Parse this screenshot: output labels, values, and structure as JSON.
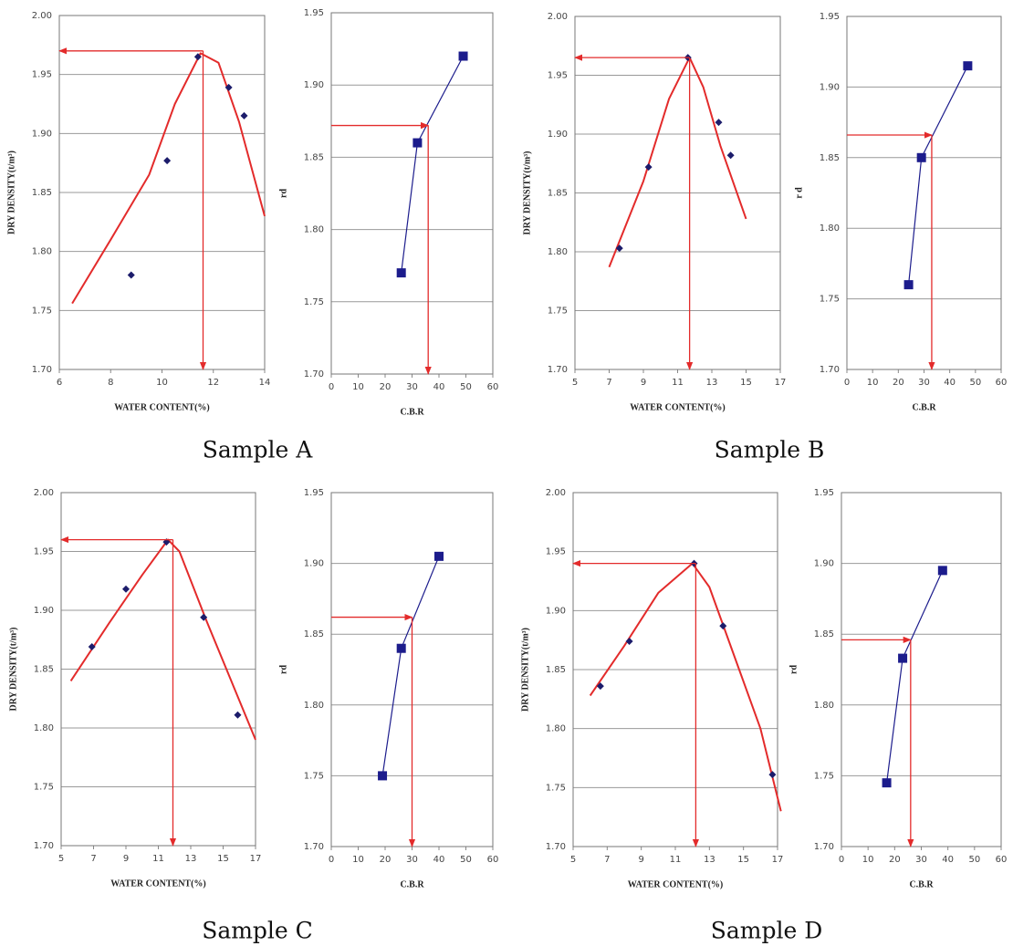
{
  "chart_data": [
    {
      "type": "line",
      "x_label": "WATER CONTENT(%)",
      "y_label": "DRY DENSITY(t/m³)",
      "xlim": [
        6,
        14
      ],
      "xticks": [
        6,
        8,
        10,
        12,
        14
      ],
      "ylim": [
        1.7,
        2.0
      ],
      "yticks": [
        {
          "value": 1.7,
          "label": "1.70"
        },
        1.75,
        {
          "value": 1.8,
          "label": "1.80"
        },
        1.85,
        {
          "value": 1.9,
          "label": "1.90"
        },
        1.95,
        {
          "value": 2.0,
          "label": "2.00"
        }
      ],
      "grid": true,
      "series": [
        {
          "color": "#e32b2b",
          "marker": "none",
          "x": [
            6.5,
            8,
            9.5,
            10.5,
            11.5,
            12.2,
            13,
            14
          ],
          "values": [
            1.756,
            1.81,
            1.865,
            1.925,
            1.968,
            1.96,
            1.91,
            1.83
          ]
        },
        {
          "color": "#1c1c6b",
          "marker": "diamond",
          "x": [
            8.8,
            10.2,
            11.4,
            12.6,
            13.2
          ],
          "values": [
            1.78,
            1.877,
            1.965,
            1.939,
            1.915
          ]
        }
      ],
      "guide": {
        "x": 11.6,
        "y": 1.97,
        "arrows": "to-axes",
        "color": "#e32b2b"
      }
    },
    {
      "type": "line",
      "x_label": "C.B.R",
      "y_label": "rd",
      "xlim": [
        0,
        60
      ],
      "xticks": [
        0,
        10,
        20,
        30,
        40,
        50,
        60
      ],
      "ylim": [
        1.7,
        1.95
      ],
      "yticks": [
        {
          "value": 1.7,
          "label": "1.70"
        },
        1.75,
        {
          "value": 1.8,
          "label": "1.80"
        },
        1.85,
        {
          "value": 1.9,
          "label": "1.90"
        },
        1.95
      ],
      "grid": true,
      "series": [
        {
          "color": "#1c1c8c",
          "marker": "square",
          "line": true,
          "x": [
            26,
            32,
            49
          ],
          "values": [
            1.77,
            1.86,
            1.92
          ]
        }
      ],
      "guide": {
        "x": 36,
        "y": 1.872,
        "arrows": "from-y-axis",
        "color": "#e32b2b"
      }
    },
    {
      "type": "line",
      "x_label": "WATER CONTENT(%)",
      "y_label": "DRY DENSITY(t/m³)",
      "xlim": [
        5,
        17
      ],
      "xticks": [
        5,
        7,
        9,
        11,
        13,
        15,
        17
      ],
      "ylim": [
        1.7,
        2.0
      ],
      "yticks": [
        {
          "value": 1.7,
          "label": "1.70"
        },
        1.75,
        {
          "value": 1.8,
          "label": "1.80"
        },
        1.85,
        {
          "value": 1.9,
          "label": "1.90"
        },
        1.95,
        {
          "value": 2.0,
          "label": "2.00"
        }
      ],
      "grid": true,
      "series": [
        {
          "color": "#e32b2b",
          "marker": "none",
          "x": [
            7,
            9,
            10.5,
            11.7,
            12.5,
            13.5,
            15
          ],
          "values": [
            1.787,
            1.86,
            1.93,
            1.965,
            1.94,
            1.89,
            1.828
          ]
        },
        {
          "color": "#1c1c6b",
          "marker": "diamond",
          "x": [
            7.6,
            9.3,
            11.6,
            13.4,
            14.1
          ],
          "values": [
            1.803,
            1.872,
            1.965,
            1.91,
            1.882
          ]
        }
      ],
      "guide": {
        "x": 11.7,
        "y": 1.965,
        "arrows": "to-axes",
        "color": "#e32b2b"
      }
    },
    {
      "type": "line",
      "x_label": "C.B.R",
      "y_label": "r d",
      "xlim": [
        0,
        60
      ],
      "xticks": [
        0,
        10,
        20,
        30,
        40,
        50,
        60
      ],
      "ylim": [
        1.7,
        1.95
      ],
      "yticks": [
        {
          "value": 1.7,
          "label": "1.70"
        },
        1.75,
        {
          "value": 1.8,
          "label": "1.80"
        },
        1.85,
        {
          "value": 1.9,
          "label": "1.90"
        },
        1.95
      ],
      "grid": true,
      "series": [
        {
          "color": "#1c1c8c",
          "marker": "square",
          "line": true,
          "x": [
            24,
            29,
            47
          ],
          "values": [
            1.76,
            1.85,
            1.915
          ]
        }
      ],
      "guide": {
        "x": 33,
        "y": 1.866,
        "arrows": "from-y-axis",
        "color": "#e32b2b"
      }
    },
    {
      "type": "line",
      "x_label": "WATER CONTENT(%)",
      "y_label": "DRY DENSITY(t/m³)",
      "xlim": [
        5,
        17
      ],
      "xticks": [
        5,
        7,
        9,
        11,
        13,
        15,
        17
      ],
      "ylim": [
        1.7,
        2.0
      ],
      "yticks": [
        {
          "value": 1.7,
          "label": "1.70"
        },
        1.75,
        {
          "value": 1.8,
          "label": "1.80"
        },
        1.85,
        {
          "value": 1.9,
          "label": "1.90"
        },
        1.95,
        {
          "value": 2.0,
          "label": "2.00"
        }
      ],
      "grid": true,
      "series": [
        {
          "color": "#e32b2b",
          "marker": "none",
          "x": [
            5.6,
            8,
            10,
            11.6,
            12.3,
            14,
            17
          ],
          "values": [
            1.84,
            1.89,
            1.93,
            1.96,
            1.95,
            1.89,
            1.79
          ]
        },
        {
          "color": "#1c1c6b",
          "marker": "diamond",
          "x": [
            6.9,
            9,
            11.5,
            13.8,
            15.9
          ],
          "values": [
            1.869,
            1.918,
            1.958,
            1.894,
            1.811
          ]
        }
      ],
      "guide": {
        "x": 11.9,
        "y": 1.96,
        "arrows": "to-axes",
        "color": "#e32b2b"
      }
    },
    {
      "type": "line",
      "x_label": "C.B.R",
      "y_label": "rd",
      "xlim": [
        0,
        60
      ],
      "xticks": [
        0,
        10,
        20,
        30,
        40,
        50,
        60
      ],
      "ylim": [
        1.7,
        1.95
      ],
      "yticks": [
        {
          "value": 1.7,
          "label": "1.70"
        },
        1.75,
        {
          "value": 1.8,
          "label": "1.80"
        },
        1.85,
        {
          "value": 1.9,
          "label": "1.90"
        },
        1.95
      ],
      "grid": true,
      "series": [
        {
          "color": "#1c1c8c",
          "marker": "square",
          "line": true,
          "x": [
            19,
            26,
            40
          ],
          "values": [
            1.75,
            1.84,
            1.905
          ]
        }
      ],
      "guide": {
        "x": 30,
        "y": 1.862,
        "arrows": "from-y-axis",
        "color": "#e32b2b"
      }
    },
    {
      "type": "line",
      "x_label": "WATER CONTENT(%)",
      "y_label": "DRY DENSITY(t/m³)",
      "xlim": [
        5,
        17
      ],
      "xticks": [
        5,
        7,
        9,
        11,
        13,
        15,
        17
      ],
      "ylim": [
        1.7,
        2.0
      ],
      "yticks": [
        {
          "value": 1.7,
          "label": "1.70"
        },
        1.75,
        {
          "value": 1.8,
          "label": "1.80"
        },
        1.85,
        {
          "value": 1.9,
          "label": "1.90"
        },
        1.95,
        {
          "value": 2.0,
          "label": "2.00"
        }
      ],
      "grid": true,
      "series": [
        {
          "color": "#e32b2b",
          "marker": "none",
          "x": [
            6,
            8,
            10,
            12,
            13,
            14.5,
            16,
            17.2
          ],
          "values": [
            1.828,
            1.87,
            1.915,
            1.94,
            1.92,
            1.86,
            1.8,
            1.73
          ]
        },
        {
          "color": "#1c1c6b",
          "marker": "diamond",
          "x": [
            6.6,
            8.3,
            12.1,
            13.8,
            16.7
          ],
          "values": [
            1.836,
            1.874,
            1.94,
            1.887,
            1.761
          ]
        }
      ],
      "guide": {
        "x": 12.2,
        "y": 1.94,
        "arrows": "to-axes",
        "color": "#e32b2b"
      }
    },
    {
      "type": "line",
      "x_label": "C.B.R",
      "y_label": "rd",
      "xlim": [
        0,
        60
      ],
      "xticks": [
        0,
        10,
        20,
        30,
        40,
        50,
        60
      ],
      "ylim": [
        1.7,
        1.95
      ],
      "yticks": [
        {
          "value": 1.7,
          "label": "1.70"
        },
        1.75,
        {
          "value": 1.8,
          "label": "1.80"
        },
        1.85,
        {
          "value": 1.9,
          "label": "1.90"
        },
        1.95
      ],
      "grid": true,
      "series": [
        {
          "color": "#1c1c8c",
          "marker": "square",
          "line": true,
          "x": [
            17,
            23,
            38
          ],
          "values": [
            1.745,
            1.833,
            1.895
          ]
        }
      ],
      "guide": {
        "x": 26,
        "y": 1.846,
        "arrows": "from-y-axis",
        "color": "#e32b2b"
      }
    }
  ],
  "captions": [
    "Sample A",
    "Sample B",
    "Sample C",
    "Sample D"
  ]
}
